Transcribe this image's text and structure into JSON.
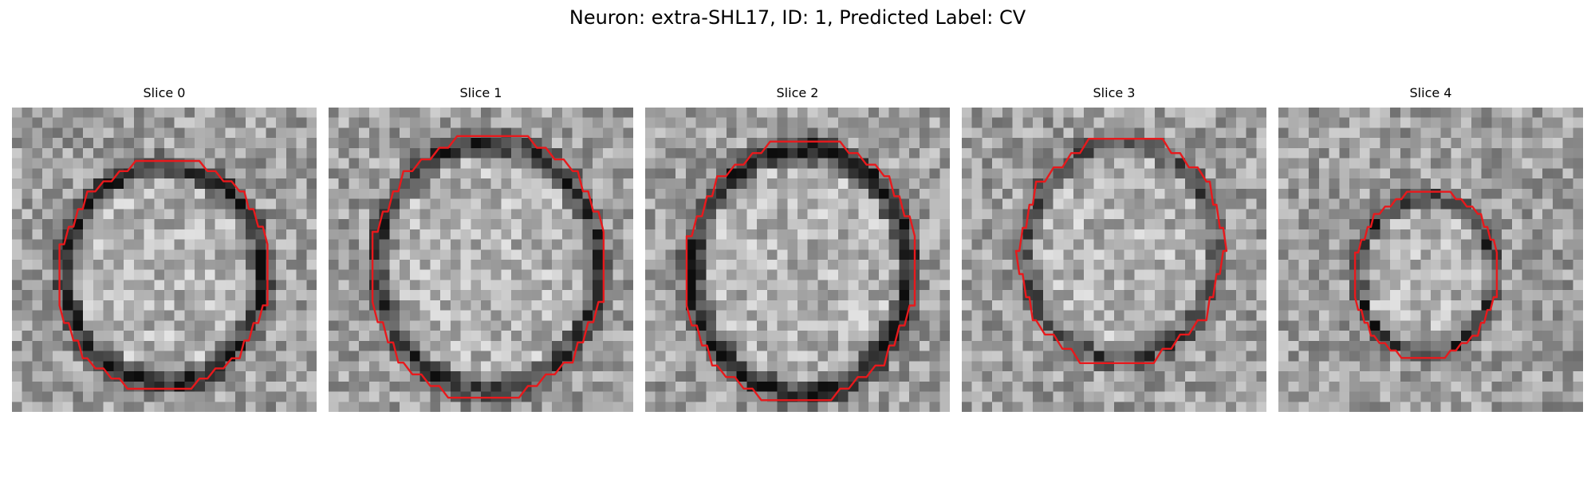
{
  "figure": {
    "title": "Neuron: extra-SHL17, ID: 1, Predicted Label: CV",
    "contour_color": "#e8191c"
  },
  "slices": [
    {
      "title": "Slice 0"
    },
    {
      "title": "Slice 1"
    },
    {
      "title": "Slice 2"
    },
    {
      "title": "Slice 3"
    },
    {
      "title": "Slice 4"
    }
  ]
}
